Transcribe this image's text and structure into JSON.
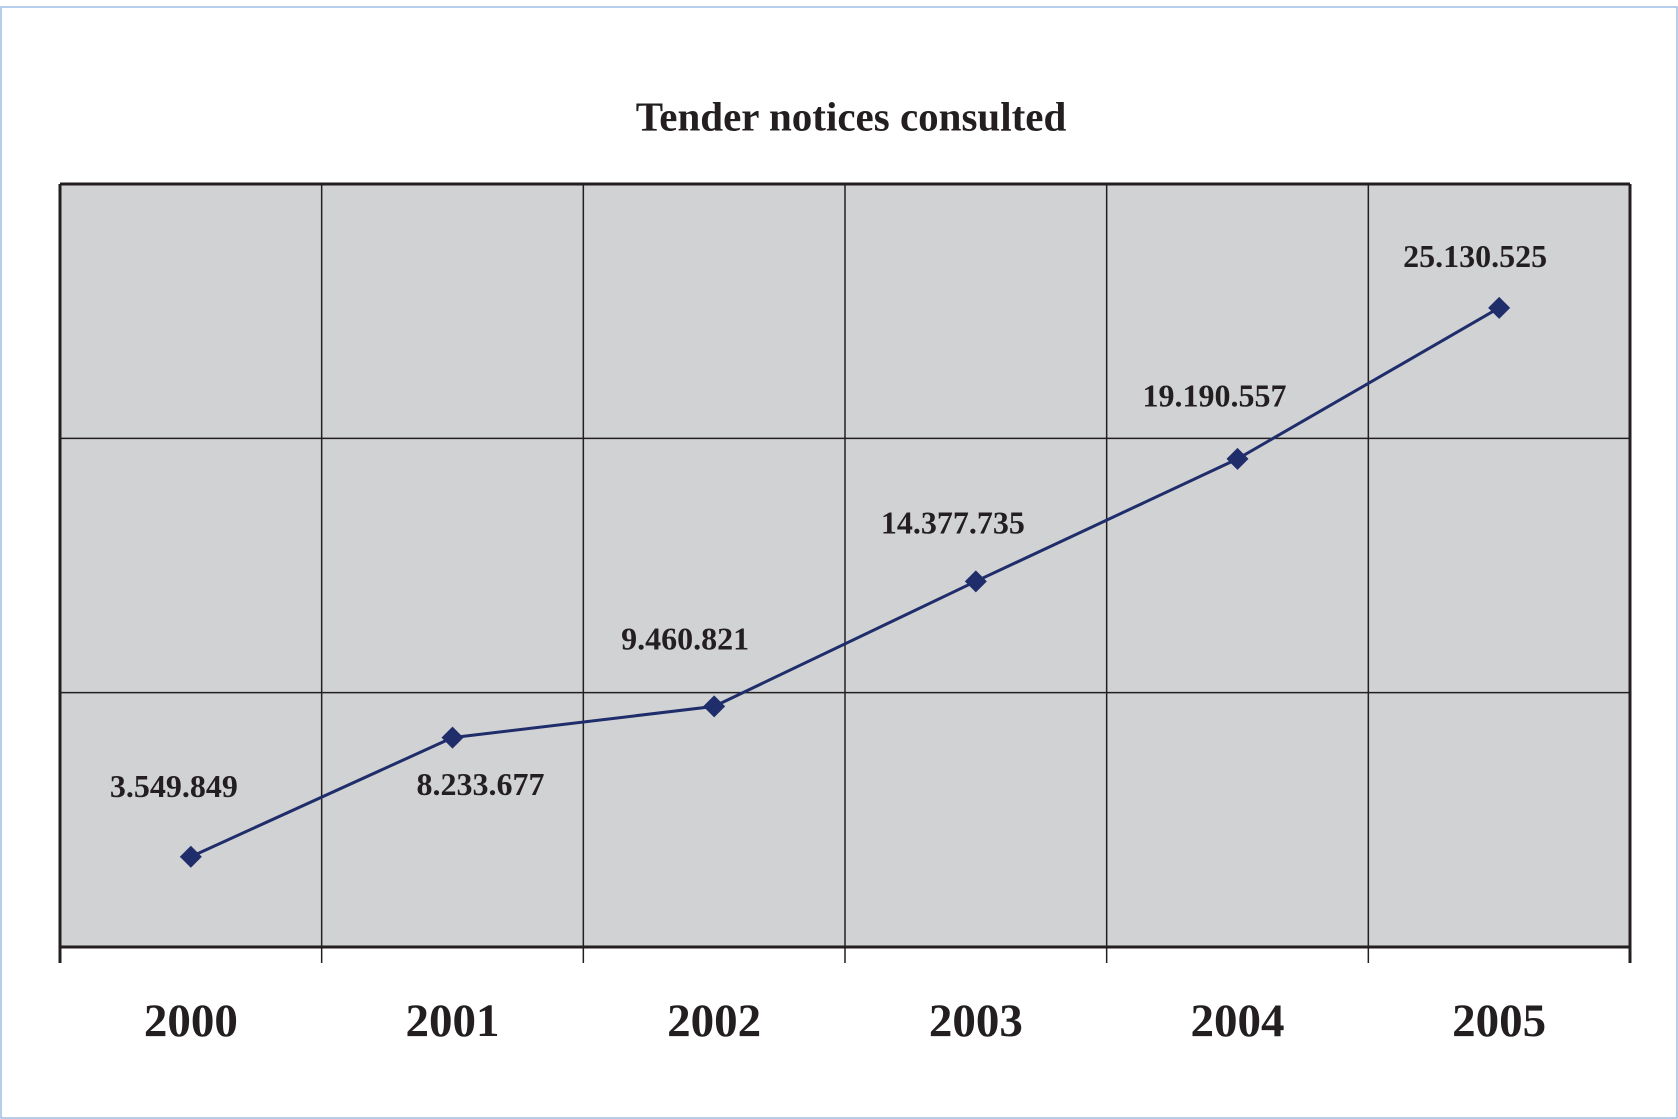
{
  "chart_data": {
    "type": "line",
    "title": "Tender notices consulted",
    "categories": [
      "2000",
      "2001",
      "2002",
      "2003",
      "2004",
      "2005"
    ],
    "series": [
      {
        "name": null,
        "color": "#1f2d6b",
        "values": [
          3549849,
          8233677,
          9460821,
          14377735,
          19190557,
          25130525
        ],
        "value_labels": [
          "3.549.849",
          "8.233.677",
          "9.460.821",
          "14.377.735",
          "19.190.557",
          "25.130.525"
        ]
      }
    ],
    "ylim": [
      0,
      30000000
    ],
    "yticks": [
      0,
      10000000,
      20000000,
      30000000
    ],
    "grid": true
  }
}
